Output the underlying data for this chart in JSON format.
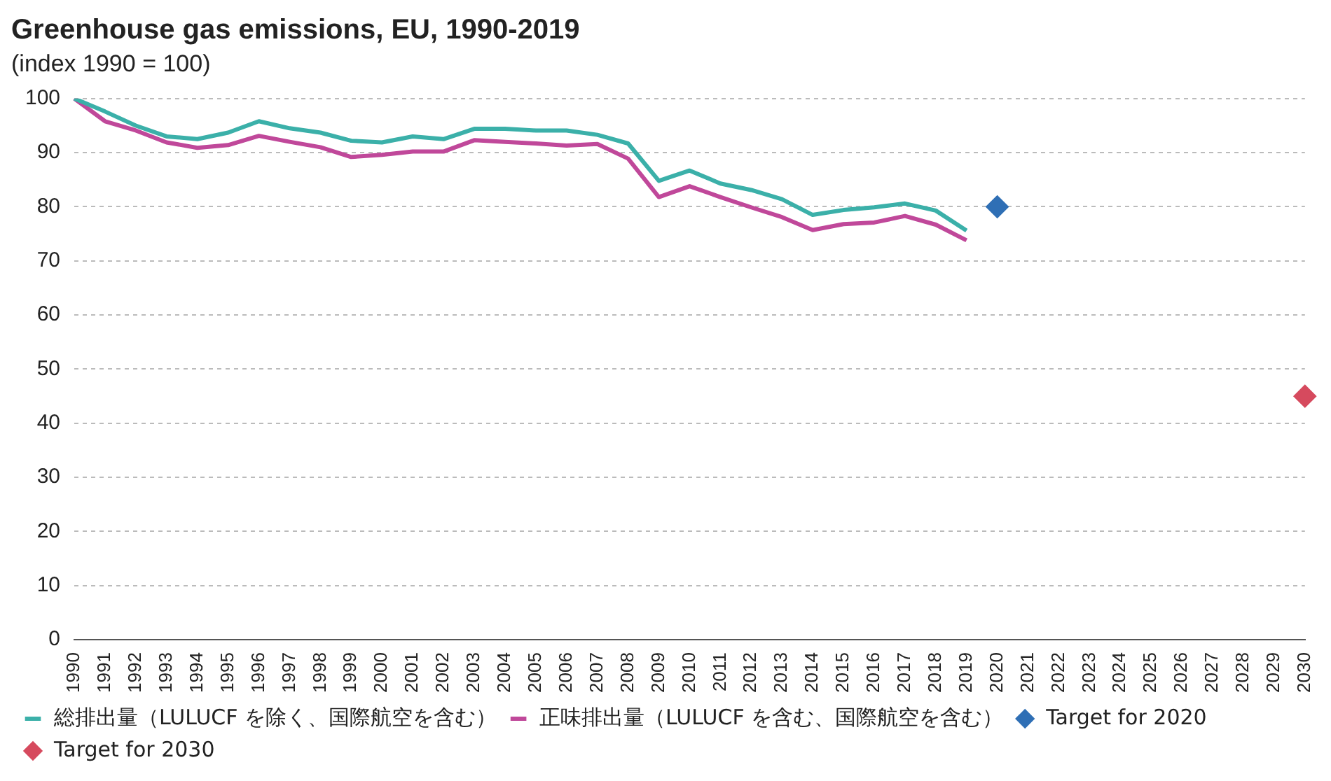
{
  "chart_data": {
    "type": "line",
    "title": "Greenhouse gas emissions, EU, 1990-2019",
    "subtitle": "(index 1990 = 100)",
    "categories": [
      "1990",
      "1991",
      "1992",
      "1993",
      "1994",
      "1995",
      "1996",
      "1997",
      "1998",
      "1999",
      "2000",
      "2001",
      "2002",
      "2003",
      "2004",
      "2005",
      "2006",
      "2007",
      "2008",
      "2009",
      "2010",
      "2011",
      "2012",
      "2013",
      "2014",
      "2015",
      "2016",
      "2017",
      "2018",
      "2019",
      "2020",
      "2021",
      "2022",
      "2023",
      "2024",
      "2025",
      "2026",
      "2027",
      "2028",
      "2029",
      "2030"
    ],
    "series": [
      {
        "name": "総排出量（LULUCF を除く、国際航空を含む）",
        "color": "#3bb0a9",
        "values": [
          100,
          97.6,
          95,
          93,
          92.5,
          93.7,
          95.8,
          94.5,
          93.7,
          92.2,
          91.9,
          93,
          92.5,
          94.4,
          94.4,
          94.1,
          94.1,
          93.3,
          91.7,
          84.8,
          86.7,
          84.3,
          83.1,
          81.4,
          78.5,
          79.4,
          79.9,
          80.6,
          79.3,
          75.6,
          null,
          null,
          null,
          null,
          null,
          null,
          null,
          null,
          null,
          null,
          null
        ]
      },
      {
        "name": "正味排出量（LULUCF を含む、国際航空を含む）",
        "color": "#c0489a",
        "values": [
          100,
          95.8,
          94.1,
          91.9,
          90.9,
          91.4,
          93.1,
          92,
          91,
          89.2,
          89.6,
          90.2,
          90.2,
          92.3,
          92,
          91.7,
          91.3,
          91.6,
          88.9,
          81.8,
          83.8,
          81.8,
          79.9,
          78.1,
          75.7,
          76.8,
          77.1,
          78.3,
          76.7,
          73.8,
          null,
          null,
          null,
          null,
          null,
          null,
          null,
          null,
          null,
          null,
          null
        ]
      },
      {
        "name": "Target for 2020",
        "type": "scatter",
        "marker": "diamond",
        "color": "#2f6fb5",
        "values": [
          null,
          null,
          null,
          null,
          null,
          null,
          null,
          null,
          null,
          null,
          null,
          null,
          null,
          null,
          null,
          null,
          null,
          null,
          null,
          null,
          null,
          null,
          null,
          null,
          null,
          null,
          null,
          null,
          null,
          null,
          80,
          null,
          null,
          null,
          null,
          null,
          null,
          null,
          null,
          null,
          null
        ]
      },
      {
        "name": "Target for 2030",
        "type": "scatter",
        "marker": "diamond",
        "color": "#d64a5e",
        "values": [
          null,
          null,
          null,
          null,
          null,
          null,
          null,
          null,
          null,
          null,
          null,
          null,
          null,
          null,
          null,
          null,
          null,
          null,
          null,
          null,
          null,
          null,
          null,
          null,
          null,
          null,
          null,
          null,
          null,
          null,
          null,
          null,
          null,
          null,
          null,
          null,
          null,
          null,
          null,
          null,
          45
        ]
      }
    ],
    "ylim": [
      0,
      100
    ],
    "yticks": [
      0,
      10,
      20,
      30,
      40,
      50,
      60,
      70,
      80,
      90,
      100
    ],
    "grid": "y",
    "legend": "bottom"
  }
}
